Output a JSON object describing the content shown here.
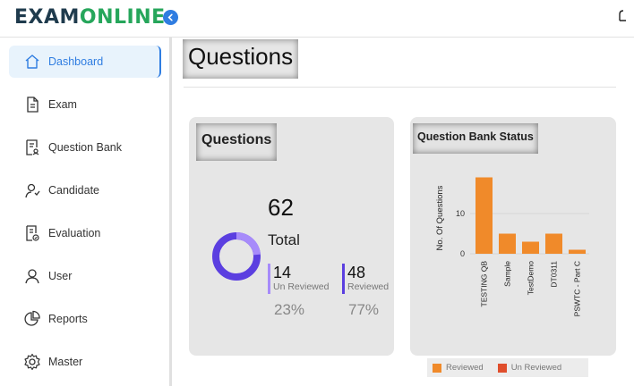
{
  "brand": {
    "part1": "EXAM",
    "part2": "ONLINE"
  },
  "sidebar": {
    "items": [
      {
        "label": "Dashboard",
        "icon": "home-icon",
        "active": true
      },
      {
        "label": "Exam",
        "icon": "document-icon",
        "active": false
      },
      {
        "label": "Question Bank",
        "icon": "question-bank-icon",
        "active": false
      },
      {
        "label": "Candidate",
        "icon": "candidate-icon",
        "active": false
      },
      {
        "label": "Evaluation",
        "icon": "evaluation-icon",
        "active": false
      },
      {
        "label": "User",
        "icon": "user-icon",
        "active": false
      },
      {
        "label": "Reports",
        "icon": "pie-chart-icon",
        "active": false
      },
      {
        "label": "Master",
        "icon": "gear-icon",
        "active": false
      }
    ]
  },
  "page": {
    "title": "Questions"
  },
  "questions_card": {
    "title": "Questions",
    "total": "62",
    "total_label": "Total",
    "unreviewed": {
      "count": "14",
      "label": "Un Reviewed",
      "percent": "23%"
    },
    "reviewed": {
      "count": "48",
      "label": "Reviewed",
      "percent": "77%"
    }
  },
  "bank_card": {
    "title": "Question Bank Status"
  },
  "colors": {
    "accent": "#2f7de1",
    "brand_green": "#26a65b",
    "reviewed": "#f08a2a",
    "unreviewed": "#e04e2c",
    "donut_main": "#5b3fe0",
    "donut_light": "#a78bfa"
  },
  "chart_data": {
    "type": "bar",
    "categories": [
      "TESTING QB",
      "Sample",
      "TestDemo",
      "DT0311",
      "PSWTC - Part C"
    ],
    "series": [
      {
        "name": "Reviewed",
        "values": [
          19,
          5,
          3,
          5,
          1
        ]
      },
      {
        "name": "Un Reviewed",
        "values": [
          0,
          0,
          0,
          0,
          0
        ]
      }
    ],
    "ylabel": "No. Of Questions",
    "yticks": [
      "0",
      "10"
    ],
    "ylim": [
      0,
      20
    ],
    "legend": "bottom"
  }
}
